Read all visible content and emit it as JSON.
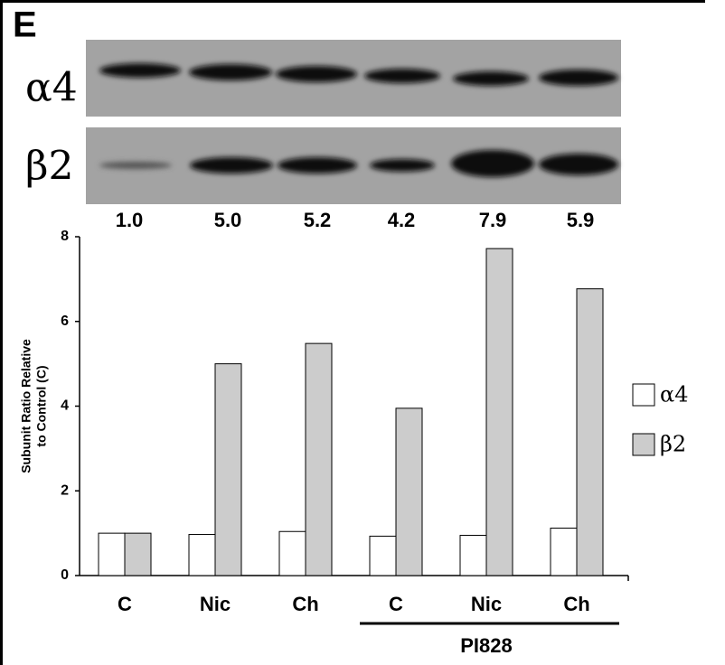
{
  "panel_label": "E",
  "blot": {
    "rows": [
      "α4",
      "β2"
    ],
    "ratios": [
      "1.0",
      "5.0",
      "5.2",
      "4.2",
      "7.9",
      "5.9"
    ]
  },
  "chart_data": {
    "type": "bar",
    "ylabel": [
      "Subunit Ratio Relative",
      "to Control (C)"
    ],
    "categories": [
      "C",
      "Nic",
      "Ch",
      "C",
      "Nic",
      "Ch"
    ],
    "group_label": "PI828",
    "series": [
      {
        "name": "α4",
        "color": "#ffffff",
        "values": [
          1.0,
          0.97,
          1.04,
          0.93,
          0.95,
          1.12
        ]
      },
      {
        "name": "β2",
        "color": "#cccccc",
        "values": [
          1.0,
          5.0,
          5.48,
          3.95,
          7.72,
          6.77
        ]
      }
    ],
    "ylim": [
      0,
      8
    ],
    "yticks": [
      0,
      2,
      4,
      6,
      8
    ],
    "legend": "right"
  }
}
